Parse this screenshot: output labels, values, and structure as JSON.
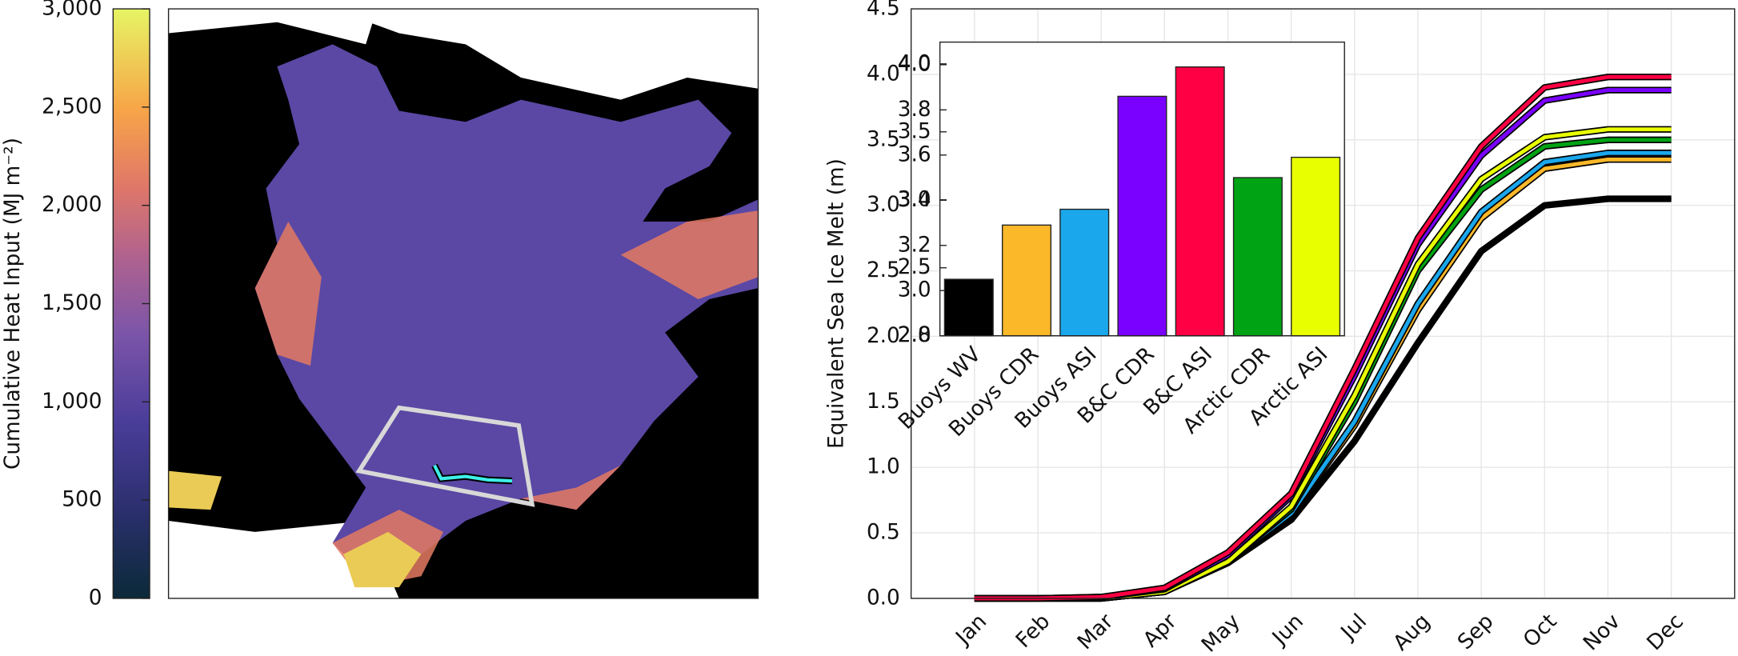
{
  "chart_data": [
    {
      "type": "colorbar",
      "ylabel": "Cumulative Heat Input (MJ m⁻²)",
      "ylim": [
        0,
        3000
      ],
      "yticks": [
        0,
        500,
        {
          "value": 1000,
          "label": "1,000"
        },
        {
          "value": 1500,
          "label": "1,500"
        },
        {
          "value": 2000,
          "label": "2,000"
        },
        {
          "value": 2500,
          "label": "2,500"
        },
        {
          "value": 3000,
          "label": "3,000"
        }
      ]
    },
    {
      "type": "line",
      "ylabel": "Equivalent Sea Ice Melt (m)",
      "categories": [
        "Jan",
        "Feb",
        "Mar",
        "Apr",
        "May",
        "Jun",
        "Jul",
        "Aug",
        "Sep",
        "Oct",
        "Nov",
        "Dec"
      ],
      "ylim": [
        0,
        4.5
      ],
      "yticks": [
        {
          "value": 0,
          "label": "0.0"
        },
        0.5,
        {
          "value": 1,
          "label": "1.0"
        },
        1.5,
        {
          "value": 2,
          "label": "2.0"
        },
        2.5,
        {
          "value": 3,
          "label": "3.0"
        },
        3.5,
        {
          "value": 4,
          "label": "4.0"
        },
        4.5
      ],
      "grid": true,
      "series": [
        {
          "name": "Buoys WV",
          "color": "#000000",
          "values": [
            0,
            0,
            0,
            0.05,
            0.27,
            0.6,
            1.2,
            1.95,
            2.65,
            3.0,
            3.05,
            3.05
          ]
        },
        {
          "name": "Buoys CDR",
          "color": "#fbb829",
          "values": [
            0,
            0,
            0,
            0.05,
            0.28,
            0.64,
            1.32,
            2.2,
            2.9,
            3.28,
            3.35,
            3.35
          ]
        },
        {
          "name": "Buoys ASI",
          "color": "#1aa7ec",
          "values": [
            0,
            0,
            0,
            0.05,
            0.28,
            0.65,
            1.35,
            2.25,
            2.95,
            3.33,
            3.4,
            3.4
          ]
        },
        {
          "name": "Arctic CDR",
          "color": "#00a313",
          "values": [
            0,
            0,
            0,
            0.05,
            0.28,
            0.68,
            1.5,
            2.5,
            3.12,
            3.45,
            3.5,
            3.5
          ]
        },
        {
          "name": "Arctic ASI",
          "color": "#e8ff00",
          "values": [
            0,
            0,
            0,
            0.05,
            0.28,
            0.7,
            1.55,
            2.55,
            3.2,
            3.52,
            3.58,
            3.58
          ]
        },
        {
          "name": "B&C CDR",
          "color": "#7a00ff",
          "values": [
            0,
            0,
            0.01,
            0.07,
            0.33,
            0.78,
            1.7,
            2.7,
            3.38,
            3.8,
            3.88,
            3.88
          ]
        },
        {
          "name": "B&C ASI",
          "color": "#ff0044",
          "values": [
            0,
            0,
            0.01,
            0.08,
            0.35,
            0.8,
            1.75,
            2.75,
            3.45,
            3.9,
            3.98,
            3.98
          ]
        }
      ]
    },
    {
      "type": "bar",
      "categories": [
        "Buoys WV",
        "Buoys CDR",
        "Buoys ASI",
        "B&C CDR",
        "B&C ASI",
        "Arctic CDR",
        "Arctic ASI"
      ],
      "values": [
        3.05,
        3.29,
        3.36,
        3.86,
        3.99,
        3.5,
        3.59
      ],
      "colors": [
        "#000000",
        "#fbb829",
        "#1aa7ec",
        "#7a00ff",
        "#ff0044",
        "#00a313",
        "#e8ff00"
      ],
      "ylim": [
        2.8,
        4.1
      ],
      "yticks": [
        2.8,
        {
          "value": 3,
          "label": "3.0"
        },
        3.2,
        3.4,
        3.6,
        3.8,
        {
          "value": 4,
          "label": "4.0"
        }
      ],
      "y2lim": [
        2.0,
        4.16
      ],
      "y2ticks": [
        {
          "value": 2,
          "label": "2.0"
        },
        2.5,
        {
          "value": 3,
          "label": "3.0"
        },
        3.5,
        {
          "value": 4,
          "label": "4.0"
        }
      ]
    }
  ]
}
